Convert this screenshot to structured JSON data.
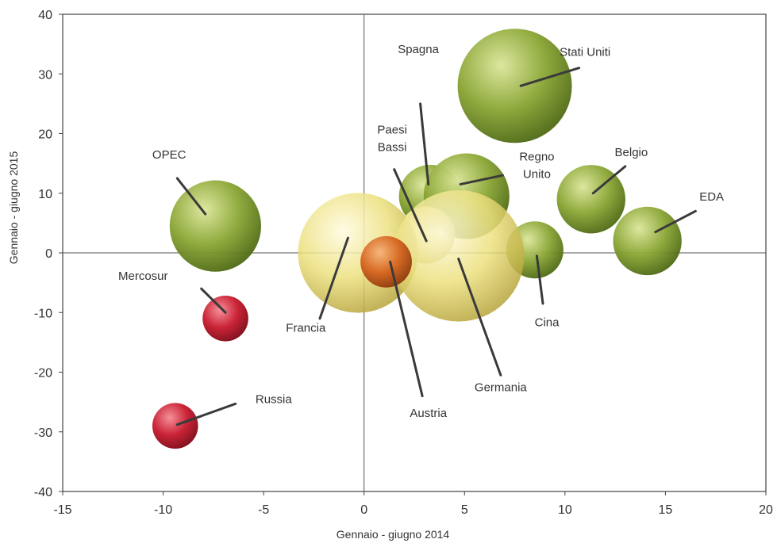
{
  "chart_data": {
    "type": "bubble",
    "xlabel": "Gennaio - giugno 2014",
    "ylabel": "Gennaio - giugno 2015",
    "xlim": [
      -15,
      20
    ],
    "ylim": [
      -40,
      40
    ],
    "x_ticks": [
      "-15",
      "-10",
      "-5",
      "0",
      "5",
      "10",
      "15",
      "20"
    ],
    "y_ticks": [
      "40",
      "30",
      "20",
      "10",
      "0",
      "-10",
      "-20",
      "-30",
      "-40"
    ],
    "grid": false,
    "colors": {
      "green": "#7f9a2e",
      "yellow": "#e8dc78",
      "orange": "#d2641e",
      "red": "#c0182a"
    },
    "points": [
      {
        "name": "Stati Uniti",
        "x": 7.5,
        "y": 28,
        "size": 1.0,
        "color": "green"
      },
      {
        "name": "Spagna",
        "x": 3.3,
        "y": 9.5,
        "size": 0.55,
        "color": "green"
      },
      {
        "name": "Regno Unito",
        "x": 5.1,
        "y": 9.5,
        "size": 0.75,
        "color": "green"
      },
      {
        "name": "Belgio",
        "x": 11.3,
        "y": 9,
        "size": 0.6,
        "color": "green"
      },
      {
        "name": "EDA",
        "x": 14.1,
        "y": 2,
        "size": 0.6,
        "color": "green"
      },
      {
        "name": "Cina",
        "x": 8.5,
        "y": 0.5,
        "size": 0.5,
        "color": "green"
      },
      {
        "name": "OPEC",
        "x": -7.4,
        "y": 4.5,
        "size": 0.8,
        "color": "green"
      },
      {
        "name": "Paesi Bassi",
        "x": 3.1,
        "y": 3,
        "size": 0.5,
        "color": "yellow"
      },
      {
        "name": "Francia",
        "x": -0.3,
        "y": 0,
        "size": 1.05,
        "color": "yellow"
      },
      {
        "name": "Germania",
        "x": 4.7,
        "y": -0.5,
        "size": 1.15,
        "color": "yellow"
      },
      {
        "name": "Austria",
        "x": 1.1,
        "y": -1.5,
        "size": 0.45,
        "color": "orange"
      },
      {
        "name": "Mercosur",
        "x": -6.9,
        "y": -11,
        "size": 0.4,
        "color": "red"
      },
      {
        "name": "Russia",
        "x": -9.4,
        "y": -29,
        "size": 0.4,
        "color": "red"
      }
    ],
    "annotations": [
      {
        "text": "Stati Uniti",
        "x": 11,
        "y": 33,
        "lines": [
          "Stati Uniti"
        ],
        "anchor": "middle",
        "from": [
          10.7,
          31
        ],
        "to": [
          7.8,
          28
        ]
      },
      {
        "text": "Spagna",
        "x": 2.7,
        "y": 33.5,
        "lines": [
          "Spagna"
        ],
        "anchor": "middle",
        "from": [
          2.8,
          25
        ],
        "to": [
          3.2,
          11.5
        ]
      },
      {
        "text": "Paesi Bassi",
        "x": 1.4,
        "y": 20,
        "lines": [
          "Paesi",
          "Bassi"
        ],
        "anchor": "middle",
        "from": [
          1.5,
          14
        ],
        "to": [
          3.1,
          2
        ]
      },
      {
        "text": "Regno Unito",
        "x": 8.6,
        "y": 15.5,
        "lines": [
          "Regno",
          "Unito"
        ],
        "anchor": "middle",
        "from": [
          6.9,
          13
        ],
        "to": [
          4.8,
          11.5
        ]
      },
      {
        "text": "Belgio",
        "x": 13.3,
        "y": 16.2,
        "lines": [
          "Belgio"
        ],
        "anchor": "middle",
        "from": [
          13,
          14.5
        ],
        "to": [
          11.4,
          10
        ]
      },
      {
        "text": "EDA",
        "x": 17.3,
        "y": 8.8,
        "lines": [
          "EDA"
        ],
        "anchor": "middle",
        "from": [
          16.5,
          7
        ],
        "to": [
          14.5,
          3.5
        ]
      },
      {
        "text": "OPEC",
        "x": -9.7,
        "y": 15.8,
        "lines": [
          "OPEC"
        ],
        "anchor": "middle",
        "from": [
          -9.3,
          12.5
        ],
        "to": [
          -7.9,
          6.5
        ]
      },
      {
        "text": "Mercosur",
        "x": -11,
        "y": -4.5,
        "lines": [
          "Mercosur"
        ],
        "anchor": "middle",
        "from": [
          -8.1,
          -6
        ],
        "to": [
          -6.9,
          -10
        ]
      },
      {
        "text": "Russia",
        "x": -4.5,
        "y": -25.2,
        "lines": [
          "Russia"
        ],
        "anchor": "middle",
        "from": [
          -6.4,
          -25.3
        ],
        "to": [
          -9.3,
          -28.8
        ]
      },
      {
        "text": "Francia",
        "x": -2.9,
        "y": -13.2,
        "lines": [
          "Francia"
        ],
        "anchor": "middle",
        "from": [
          -2.2,
          -11
        ],
        "to": [
          -0.8,
          2.5
        ]
      },
      {
        "text": "Austria",
        "x": 3.2,
        "y": -27.5,
        "lines": [
          "Austria"
        ],
        "anchor": "middle",
        "from": [
          2.9,
          -24
        ],
        "to": [
          1.3,
          -1.5
        ]
      },
      {
        "text": "Germania",
        "x": 6.8,
        "y": -23.2,
        "lines": [
          "Germania"
        ],
        "anchor": "middle",
        "from": [
          6.8,
          -20.5
        ],
        "to": [
          4.7,
          -1
        ]
      },
      {
        "text": "Cina",
        "x": 9.1,
        "y": -12.3,
        "lines": [
          "Cina"
        ],
        "anchor": "middle",
        "from": [
          8.9,
          -8.5
        ],
        "to": [
          8.6,
          -0.5
        ]
      }
    ]
  }
}
